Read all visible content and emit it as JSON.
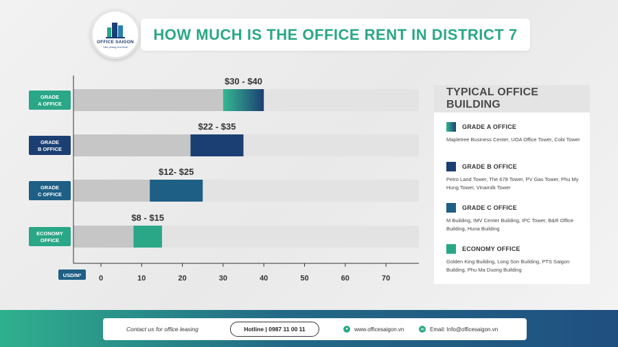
{
  "logo": {
    "name": "OFFICE SAIGON",
    "tagline": "Văn phòng cho thuê"
  },
  "title": "HOW MUCH IS THE OFFICE RENT IN DISTRICT 7",
  "chart_data": {
    "type": "bar",
    "orientation": "horizontal",
    "unit_label": "USD/M²",
    "xlim": [
      0,
      70
    ],
    "x_ticks": [
      0,
      10,
      20,
      30,
      40,
      50,
      60,
      70
    ],
    "categories": [
      "GRADE A OFFICE",
      "GRADE B OFFICE",
      "GRADE C OFFICE",
      "ECONOMY OFFICE"
    ],
    "category_lines": [
      [
        "GRADE",
        "A OFFICE"
      ],
      [
        "GRADE",
        "B OFFICE"
      ],
      [
        "GRADE",
        "C OFFICE"
      ],
      [
        "ECONOMY",
        "OFFICE"
      ]
    ],
    "ranges": [
      [
        30,
        40
      ],
      [
        22,
        35
      ],
      [
        12,
        25
      ],
      [
        8,
        15
      ]
    ],
    "range_labels": [
      "$30 - $40",
      "$22 - $35",
      "$12- $25",
      "$8 - $15"
    ],
    "colors": [
      "#2aa786",
      "#1c3f73",
      "#1e5f85",
      "#2aa786"
    ],
    "gradient_a": [
      "#35b890",
      "#1c3f73"
    ],
    "label_bg": [
      "#2aa786",
      "#1c3f73",
      "#1e5f85",
      "#2aa786"
    ]
  },
  "legend": {
    "title": "TYPICAL OFFICE BUILDING",
    "items": [
      {
        "label": "GRADE A OFFICE",
        "desc": "Mapletree Business Center, UOA Office Tower, Cobi Tower",
        "color": "gradient"
      },
      {
        "label": "GRADE B OFFICE",
        "desc": "Petro Land Tower, The 678 Tower, PV Gas Tower, Phu My Hung Tower, Vinamilk Tower",
        "color": "#1c3f73"
      },
      {
        "label": "GRADE C OFFICE",
        "desc": "M Building, IMV Center Building, IPC Tower, B&R Office Building, Huna Building",
        "color": "#1e5f85"
      },
      {
        "label": "ECONOMY OFFICE",
        "desc": "Golden King Building, Long Son Building, PTS Saigon Building, Phu Ma Duong Building",
        "color": "#2aa786"
      }
    ]
  },
  "footer": {
    "contact": "Contact us for office leasing",
    "hotline": "Hotline | 0987 11 00 11",
    "website": "www.officesaigon.vn",
    "email": "Email: Info@officesaigon.vn"
  }
}
